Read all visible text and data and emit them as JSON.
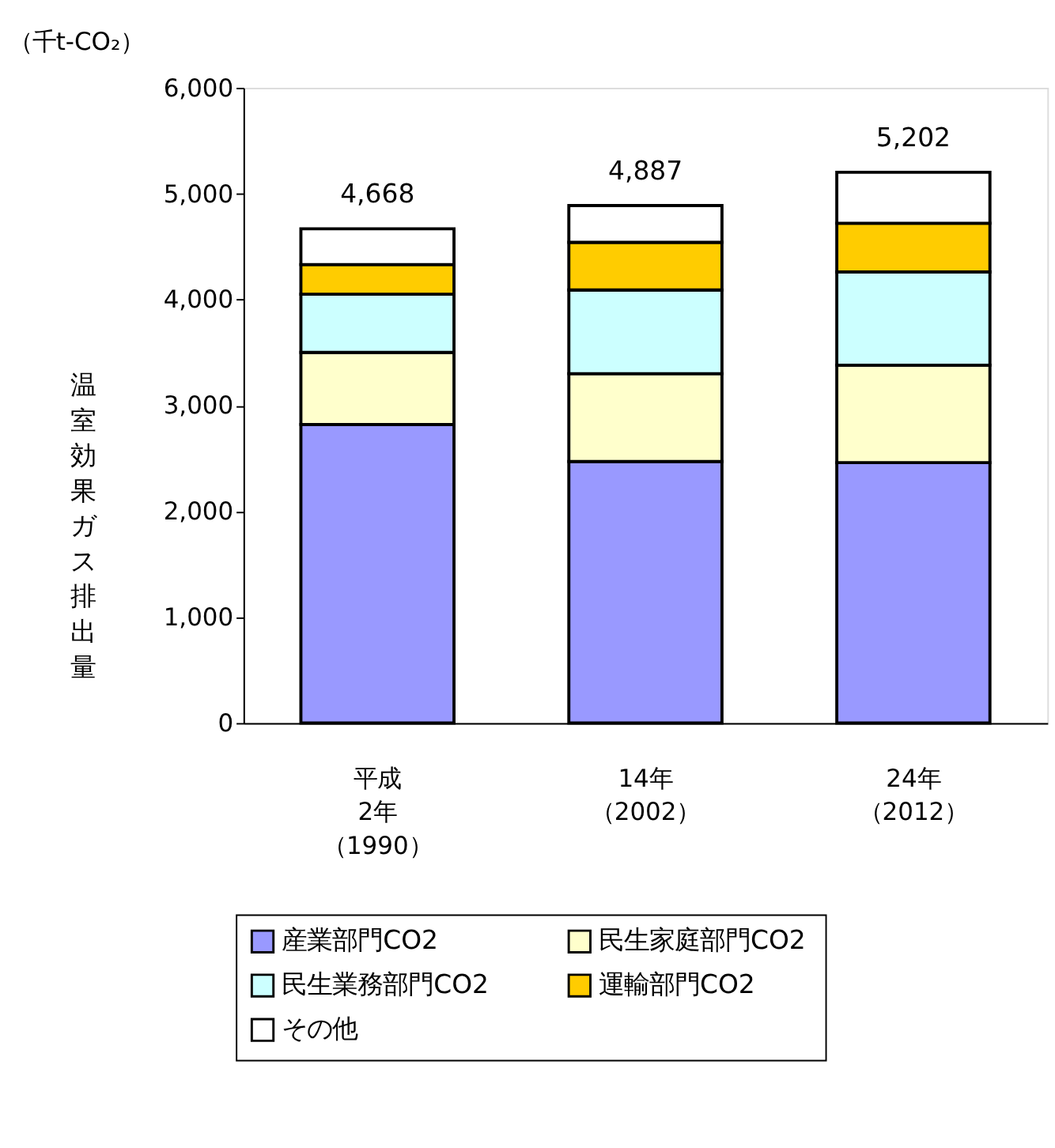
{
  "chart_data": {
    "type": "bar",
    "stacked": true,
    "subtitle": "（千t-CO₂）",
    "ylabel": "温室効果ガス排出量",
    "categories": [
      "平成2年（1990）",
      "14年（2002）",
      "24年（2012）"
    ],
    "series": [
      {
        "name": "産業部門CO2",
        "color": "#9999ff",
        "values": [
          2820,
          2470,
          2460
        ]
      },
      {
        "name": "民生家庭部門CO2",
        "color": "#ffffcc",
        "values": [
          680,
          830,
          920
        ]
      },
      {
        "name": "民生業務部門CO2",
        "color": "#ccffff",
        "values": [
          550,
          790,
          880
        ]
      },
      {
        "name": "運輸部門CO2",
        "color": "#ffcc00",
        "values": [
          280,
          450,
          460
        ]
      },
      {
        "name": "その他",
        "color": "#ffffff",
        "values": [
          338,
          347,
          482
        ]
      }
    ],
    "totals": [
      "4,668",
      "4,887",
      "5,202"
    ],
    "ylim": [
      0,
      6000
    ],
    "yticks": [
      0,
      {
        "value": 1000,
        "label": "1,000"
      },
      {
        "value": 2000,
        "label": "2,000"
      },
      {
        "value": 3000,
        "label": "3,000"
      },
      {
        "value": 4000,
        "label": "4,000"
      },
      {
        "value": 5000,
        "label": "5,000"
      },
      {
        "value": 6000,
        "label": "6,000"
      }
    ],
    "grid": false,
    "legend": "bottom"
  }
}
